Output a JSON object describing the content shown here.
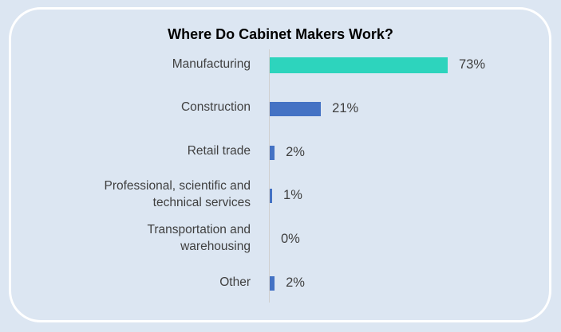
{
  "chart_data": {
    "type": "bar",
    "orientation": "horizontal",
    "title": "Where Do Cabinet Makers Work?",
    "categories": [
      "Manufacturing",
      "Construction",
      "Retail trade",
      "Professional, scientific and\ntechnical services",
      "Transportation and\nwarehousing",
      "Other"
    ],
    "values": [
      73,
      21,
      2,
      1,
      0,
      2
    ],
    "value_labels": [
      "73%",
      "21%",
      "2%",
      "1%",
      "0%",
      "2%"
    ],
    "colors": [
      "#2dd4bd",
      "#4472c4",
      "#4472c4",
      "#4472c4",
      "#4472c4",
      "#4472c4"
    ]
  }
}
